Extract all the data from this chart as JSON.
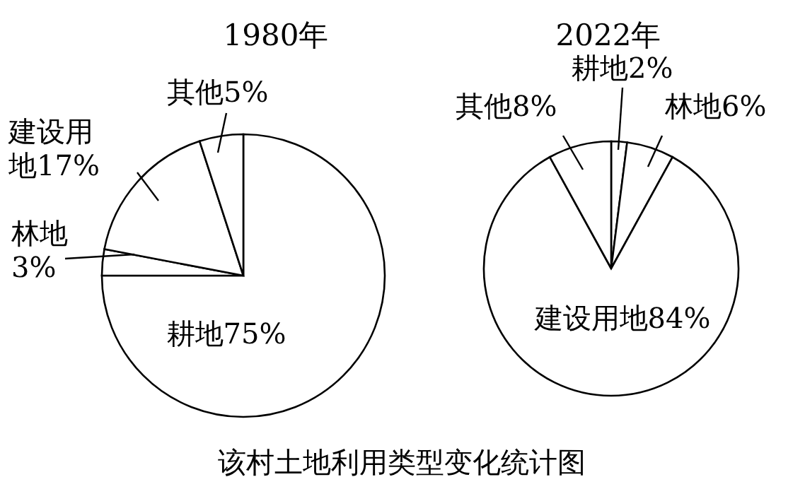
{
  "chart_data": [
    {
      "type": "pie",
      "title": "1980年",
      "categories": [
        "耕地",
        "林地",
        "建设用地",
        "其他"
      ],
      "values": [
        75,
        3,
        17,
        5
      ],
      "value_labels": [
        "75%",
        "3%",
        "17%",
        "5%"
      ],
      "colors": [
        "#ffffff",
        "#ffffff",
        "#ffffff",
        "#ffffff"
      ],
      "annotations": [
        "该村土地利用类型变化统计图"
      ]
    },
    {
      "type": "pie",
      "title": "2022年",
      "categories": [
        "耕地",
        "林地",
        "建设用地",
        "其他"
      ],
      "values": [
        2,
        6,
        84,
        8
      ],
      "value_labels": [
        "2%",
        "6%",
        "84%",
        "8%"
      ],
      "colors": [
        "#ffffff",
        "#ffffff",
        "#ffffff",
        "#ffffff"
      ]
    }
  ]
}
